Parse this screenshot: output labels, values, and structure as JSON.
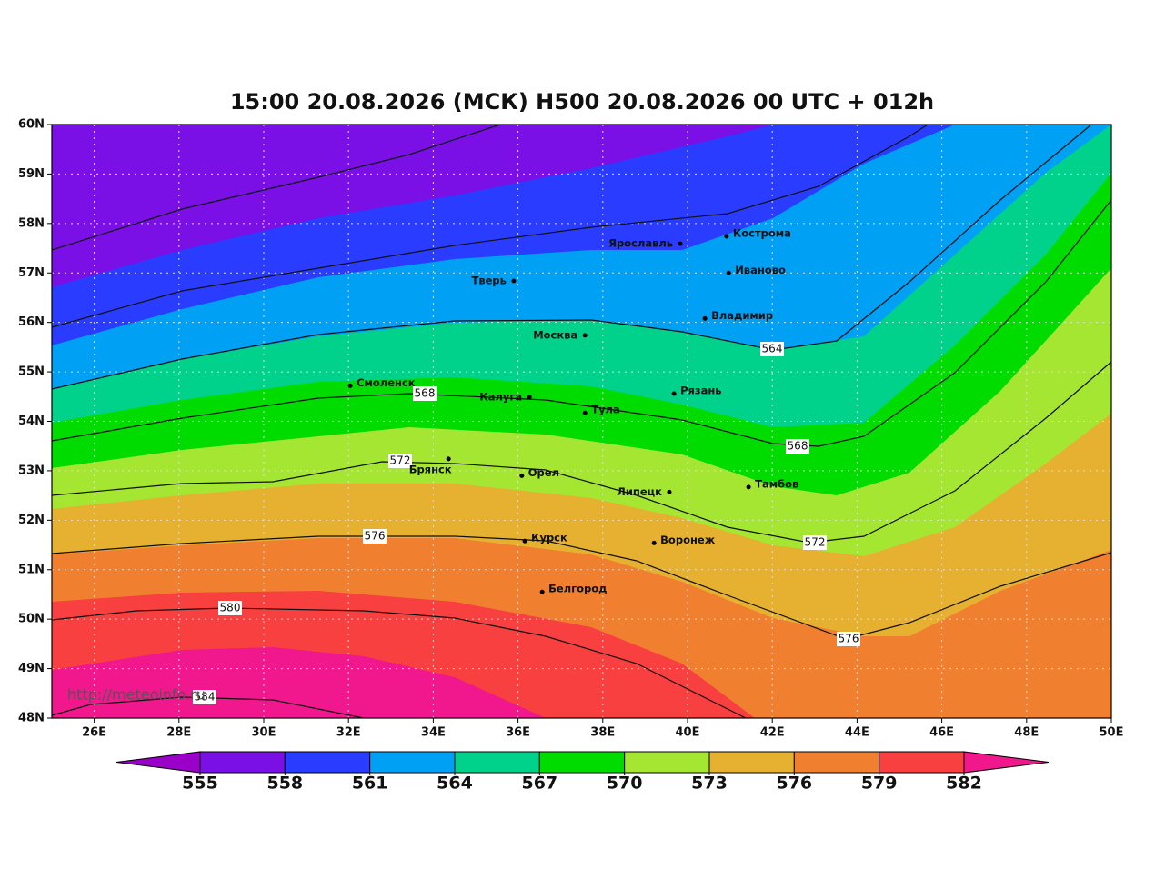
{
  "title": "15:00 20.08.2026 (МСК) H500  20.08.2026 00 UTC + 012h",
  "map": {
    "xlim": [
      25,
      50
    ],
    "ylim": [
      48,
      60
    ],
    "xticks": [
      {
        "value": 26,
        "label": "26E"
      },
      {
        "value": 28,
        "label": "28E"
      },
      {
        "value": 30,
        "label": "30E"
      },
      {
        "value": 32,
        "label": "32E"
      },
      {
        "value": 34,
        "label": "34E"
      },
      {
        "value": 36,
        "label": "36E"
      },
      {
        "value": 38,
        "label": "38E"
      },
      {
        "value": 40,
        "label": "40E"
      },
      {
        "value": 42,
        "label": "42E"
      },
      {
        "value": 44,
        "label": "44E"
      },
      {
        "value": 46,
        "label": "46E"
      },
      {
        "value": 48,
        "label": "48E"
      },
      {
        "value": 50,
        "label": "50E"
      }
    ],
    "yticks": [
      {
        "value": 48,
        "label": "48N"
      },
      {
        "value": 49,
        "label": "49N"
      },
      {
        "value": 50,
        "label": "50N"
      },
      {
        "value": 51,
        "label": "51N"
      },
      {
        "value": 52,
        "label": "52N"
      },
      {
        "value": 53,
        "label": "53N"
      },
      {
        "value": 54,
        "label": "54N"
      },
      {
        "value": 55,
        "label": "55N"
      },
      {
        "value": 56,
        "label": "56N"
      },
      {
        "value": 57,
        "label": "57N"
      },
      {
        "value": 58,
        "label": "58N"
      },
      {
        "value": 59,
        "label": "59N"
      },
      {
        "value": 60,
        "label": "60N"
      }
    ],
    "cities": [
      {
        "name": "Кострома",
        "lon": 40.92,
        "lat": 57.74
      },
      {
        "name": "Ярославль",
        "lon": 39.83,
        "lat": 57.59
      },
      {
        "name": "Тверь",
        "lon": 35.9,
        "lat": 56.84
      },
      {
        "name": "Иваново",
        "lon": 40.97,
        "lat": 57.0
      },
      {
        "name": "Владимир",
        "lon": 40.41,
        "lat": 56.08
      },
      {
        "name": "Москва",
        "lon": 37.58,
        "lat": 55.74
      },
      {
        "name": "Смоленск",
        "lon": 32.04,
        "lat": 54.72
      },
      {
        "name": "Рязань",
        "lon": 39.68,
        "lat": 54.56
      },
      {
        "name": "Калуга",
        "lon": 36.27,
        "lat": 54.49
      },
      {
        "name": "Тула",
        "lon": 37.58,
        "lat": 54.17
      },
      {
        "name": "Брянск",
        "lon": 34.36,
        "lat": 53.24
      },
      {
        "name": "Орел",
        "lon": 36.09,
        "lat": 52.9
      },
      {
        "name": "Липецк",
        "lon": 39.57,
        "lat": 52.57
      },
      {
        "name": "Тамбов",
        "lon": 41.44,
        "lat": 52.67
      },
      {
        "name": "Курск",
        "lon": 36.16,
        "lat": 51.58
      },
      {
        "name": "Воронеж",
        "lon": 39.21,
        "lat": 51.54
      },
      {
        "name": "Белгород",
        "lon": 36.57,
        "lat": 50.55
      }
    ],
    "contour_labels": [
      "564",
      "568",
      "568",
      "572",
      "572",
      "576",
      "576",
      "580",
      "584"
    ],
    "watermark": "http://meteoinfo.ru"
  },
  "colorbar": {
    "levels": [
      555,
      558,
      561,
      564,
      567,
      570,
      573,
      576,
      579,
      582
    ],
    "colors": [
      "#9a00c8",
      "#7a10e6",
      "#2a3cff",
      "#00a0f5",
      "#00d28c",
      "#00dc00",
      "#a4e632",
      "#e6b030",
      "#f08030",
      "#f84040",
      "#f0188c"
    ]
  }
}
